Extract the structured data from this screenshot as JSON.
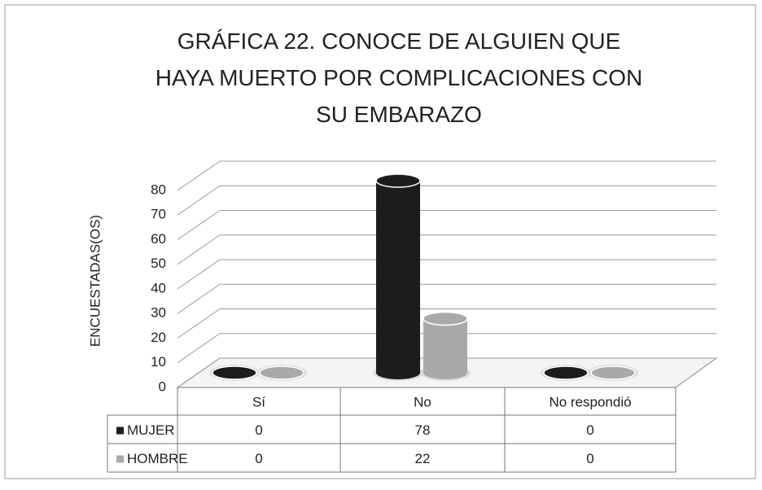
{
  "chart_data": {
    "type": "bar3d",
    "title": "GRÁFICA 22. CONOCE DE ALGUIEN QUE HAYA MUERTO POR COMPLICACIONES CON SU EMBARAZO",
    "y_label": "ENCUESTADAS(OS)",
    "categories": [
      "Sí",
      "No",
      "No respondió"
    ],
    "series": [
      {
        "name": "MUJER",
        "color": "#1c1c1c",
        "values": [
          0,
          78,
          0
        ]
      },
      {
        "name": "HOMBRE",
        "color": "#a9a9a9",
        "values": [
          0,
          22,
          0
        ]
      }
    ],
    "ylim": [
      0,
      80
    ],
    "yticks": [
      0,
      10,
      20,
      30,
      40,
      50,
      60,
      70,
      80
    ],
    "grid": true,
    "data_table": true
  }
}
